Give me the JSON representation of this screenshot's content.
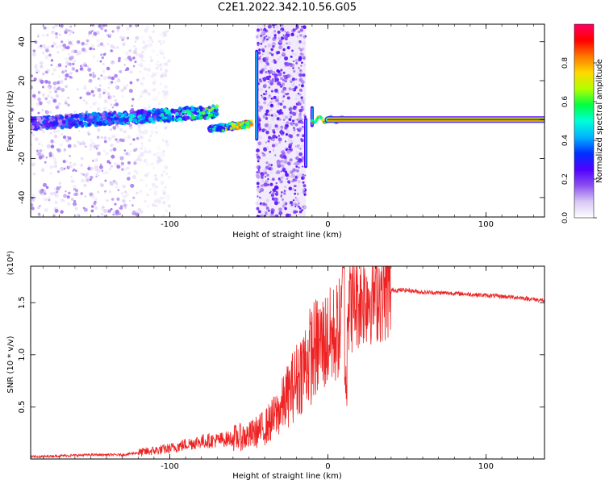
{
  "title": "C2E1.2022.342.10.56.G05",
  "chart_data": [
    {
      "type": "heatmap",
      "xlabel": "Height of straight line (km)",
      "ylabel": "Frequency (Hz)",
      "xlim": [
        -188,
        137
      ],
      "ylim": [
        -50,
        49
      ],
      "x_ticks": [
        -100,
        0,
        100
      ],
      "y_ticks": [
        -40,
        -20,
        0,
        20,
        40
      ],
      "colorbar": {
        "label": "Normalized spectral amplitude",
        "range": [
          0,
          1
        ],
        "ticks": [
          "0.0",
          "0.2",
          "0.4",
          "0.6",
          "0.8"
        ],
        "colormap": [
          "#ffffff",
          "#d8c8f4",
          "#8c50f0",
          "#5000ff",
          "#0030ff",
          "#00b4ff",
          "#00ffd8",
          "#00ff40",
          "#b4ff00",
          "#ffd800",
          "#ff7800",
          "#ff0000",
          "#ff0064"
        ]
      },
      "features": [
        {
          "label": "scattered noise",
          "x_range": [
            -188,
            -120
          ],
          "frequency_range": [
            -50,
            49
          ]
        },
        {
          "label": "main signal track",
          "x_start": -188,
          "x_end": -70,
          "frequency_start": -2,
          "frequency_end": 4,
          "amplitude": 0.35
        },
        {
          "label": "track segment",
          "x_start": -75,
          "x_end": -48,
          "frequency_start": -5,
          "frequency_end": -2,
          "amplitude": 0.55
        },
        {
          "label": "vertical band",
          "x_range": [
            -45,
            -14
          ],
          "frequency_range": [
            -50,
            49
          ]
        },
        {
          "label": "vertical streak",
          "x": -45,
          "frequency_range": [
            -10,
            35
          ]
        },
        {
          "label": "vertical streak",
          "x": -14,
          "frequency_range": [
            -24,
            0
          ]
        },
        {
          "label": "vertical streak",
          "x": -10,
          "frequency_range": [
            -3,
            6
          ]
        },
        {
          "label": "stable tone",
          "x_start": 0,
          "x_end": 137,
          "frequency": 0,
          "amplitude": 0.95
        }
      ]
    },
    {
      "type": "line",
      "xlabel": "Height of straight line (km)",
      "ylabel": "SNR (10 * v/v)",
      "y_multiplier": "(x10⁴)",
      "xlim": [
        -188,
        137
      ],
      "ylim": [
        0,
        1.85
      ],
      "x_ticks": [
        -100,
        0,
        100
      ],
      "y_ticks": [
        0.5,
        1.0,
        1.5
      ],
      "series": [
        {
          "color": "#ee2222",
          "x": [
            -188,
            -170,
            -150,
            -130,
            -120,
            -110,
            -100,
            -90,
            -80,
            -70,
            -60,
            -50,
            -45,
            -40,
            -35,
            -30,
            -25,
            -20,
            -15,
            -10,
            -5,
            0,
            5,
            8,
            10,
            12,
            15,
            20,
            25,
            30,
            35,
            40,
            50,
            60,
            80,
            100,
            120,
            137
          ],
          "y": [
            0.02,
            0.03,
            0.04,
            0.04,
            0.06,
            0.08,
            0.1,
            0.14,
            0.17,
            0.18,
            0.2,
            0.22,
            0.26,
            0.3,
            0.38,
            0.48,
            0.62,
            0.75,
            0.9,
            1.02,
            1.1,
            1.14,
            1.2,
            1.28,
            1.4,
            1.45,
            1.5,
            1.55,
            1.58,
            1.6,
            1.61,
            1.62,
            1.62,
            1.6,
            1.59,
            1.57,
            1.55,
            1.52
          ]
        }
      ]
    }
  ]
}
